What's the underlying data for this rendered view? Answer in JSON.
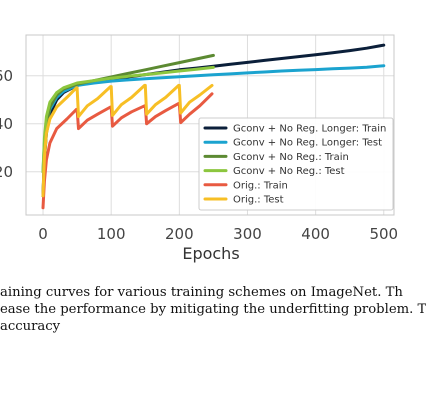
{
  "chart_data": {
    "type": "line",
    "xlabel": "Epochs",
    "ylabel": "",
    "xlim": [
      -25,
      515
    ],
    "ylim": [
      2,
      77
    ],
    "xticks": [
      0,
      100,
      200,
      300,
      400,
      500
    ],
    "yticks": [
      20,
      40,
      60
    ],
    "ytick_labels": [
      "20",
      "40",
      "60"
    ],
    "grid": true,
    "legend_position": "lower-right",
    "series": [
      {
        "name": "Gconv + No Reg. Longer: Train",
        "color": "#0b1f3a",
        "x": [
          0,
          2,
          5,
          10,
          20,
          30,
          50,
          75,
          100,
          125,
          150,
          175,
          200,
          225,
          250,
          275,
          300,
          325,
          350,
          375,
          400,
          425,
          450,
          475,
          500
        ],
        "y": [
          10,
          25,
          36,
          44,
          50,
          53,
          56,
          57.5,
          58.5,
          59.5,
          60.5,
          61.5,
          62.5,
          63.2,
          64,
          64.8,
          65.6,
          66.4,
          67.2,
          68,
          68.8,
          69.6,
          70.5,
          71.5,
          72.8
        ]
      },
      {
        "name": "Gconv + No Reg. Longer: Test",
        "color": "#1ba3cf",
        "x": [
          0,
          2,
          5,
          10,
          20,
          30,
          50,
          75,
          100,
          125,
          150,
          175,
          200,
          225,
          250,
          275,
          300,
          325,
          350,
          375,
          400,
          425,
          450,
          475,
          500
        ],
        "y": [
          20,
          32,
          40,
          46,
          51,
          53.5,
          56,
          57,
          57.8,
          58.3,
          58.8,
          59.2,
          59.6,
          60,
          60.4,
          60.8,
          61.2,
          61.6,
          62,
          62.3,
          62.6,
          62.9,
          63.2,
          63.6,
          64.2
        ]
      },
      {
        "name": "Gconv + No Reg.: Train",
        "color": "#5c8a32",
        "x": [
          0,
          2,
          5,
          10,
          20,
          30,
          50,
          75,
          100,
          125,
          150,
          175,
          200,
          225,
          250
        ],
        "y": [
          10,
          28,
          39,
          47,
          52,
          54.5,
          56.5,
          58,
          59.5,
          61,
          62.5,
          64,
          65.5,
          67,
          68.5
        ]
      },
      {
        "name": "Gconv + No Reg.: Test",
        "color": "#8cc63e",
        "x": [
          0,
          2,
          5,
          10,
          20,
          30,
          50,
          75,
          100,
          125,
          150,
          175,
          200,
          225,
          250
        ],
        "y": [
          20,
          34,
          43,
          49,
          53,
          55,
          57,
          58,
          59,
          59.8,
          60.5,
          61.2,
          62,
          62.7,
          63.5
        ]
      },
      {
        "name": "Orig.: Train",
        "color": "#e85a41",
        "x": [
          0,
          2,
          5,
          10,
          20,
          35,
          49,
          50,
          52,
          65,
          80,
          99,
          100,
          102,
          115,
          130,
          149,
          150,
          152,
          165,
          180,
          199,
          200,
          202,
          215,
          230,
          248
        ],
        "y": [
          5,
          16,
          25,
          32,
          38,
          42,
          46,
          46,
          38,
          41.5,
          44,
          47,
          47,
          39,
          42.5,
          45,
          47.5,
          47.5,
          40,
          43,
          45.5,
          48.5,
          48.5,
          40.5,
          44,
          47.5,
          52.5
        ]
      },
      {
        "name": "Orig.: Test",
        "color": "#f7bf25",
        "x": [
          0,
          2,
          5,
          10,
          20,
          35,
          49,
          50,
          52,
          65,
          80,
          99,
          100,
          102,
          115,
          130,
          149,
          150,
          152,
          165,
          180,
          199,
          200,
          202,
          215,
          230,
          248
        ],
        "y": [
          10,
          26,
          36,
          42,
          47,
          51,
          55,
          55,
          43,
          47.5,
          50.5,
          55.5,
          55.5,
          43.5,
          48,
          51,
          56,
          56,
          44,
          48,
          51,
          56,
          56,
          44.5,
          49,
          52,
          56
        ]
      }
    ]
  },
  "caption": {
    "lines": [
      "aining curves for various training schemes on ImageNet.  Th",
      "ease the performance by mitigating the underfitting problem. T",
      " accuracy"
    ]
  }
}
